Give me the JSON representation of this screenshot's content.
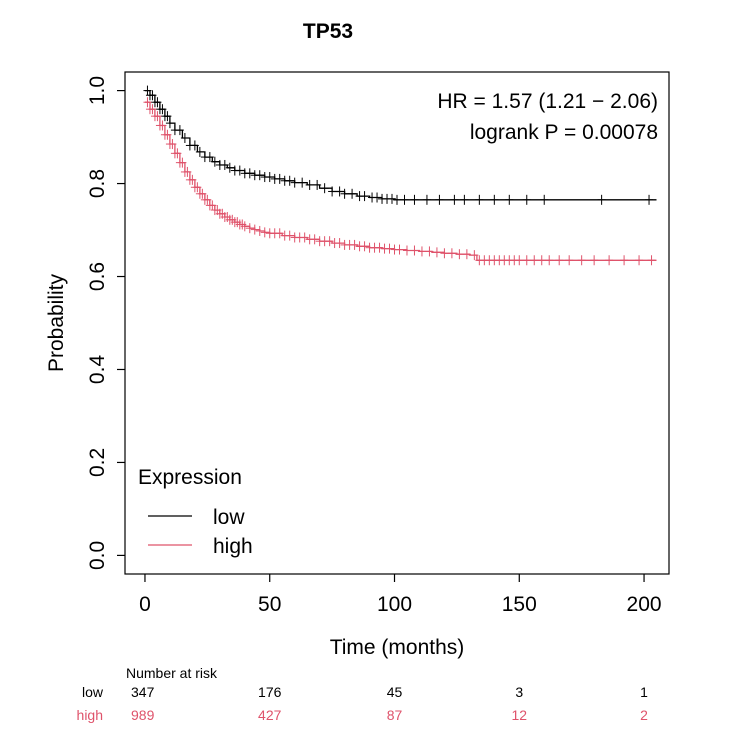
{
  "chart_data": {
    "type": "line",
    "subtype": "kaplan-meier",
    "title": "TP53",
    "xlabel": "Time (months)",
    "ylabel": "Probability",
    "xlim": [
      -8,
      210
    ],
    "ylim": [
      -0.04,
      1.04
    ],
    "xticks": [
      0,
      50,
      100,
      150,
      200
    ],
    "yticks": [
      0.0,
      0.2,
      0.4,
      0.6,
      0.8,
      1.0
    ],
    "xtick_labels": [
      "0",
      "50",
      "100",
      "150",
      "200"
    ],
    "ytick_labels": [
      "0.0",
      "0.2",
      "0.4",
      "0.6",
      "0.8",
      "1.0"
    ],
    "annotations": [
      "HR = 1.57 (1.21 − 2.06)",
      "logrank P = 0.00078"
    ],
    "legend": {
      "title": "Expression",
      "position": "bottom-left",
      "entries": [
        {
          "label": "low",
          "color": "#000000"
        },
        {
          "label": "high",
          "color": "#DF536B"
        }
      ]
    },
    "series": [
      {
        "name": "low",
        "color": "#000000",
        "x": [
          0,
          2,
          4,
          6,
          8,
          10,
          12,
          15,
          18,
          21,
          24,
          27,
          30,
          33,
          36,
          40,
          44,
          48,
          52,
          56,
          60,
          65,
          70,
          75,
          80,
          85,
          90,
          95,
          100,
          205
        ],
        "y": [
          1.0,
          0.99,
          0.975,
          0.96,
          0.945,
          0.93,
          0.915,
          0.898,
          0.882,
          0.868,
          0.857,
          0.847,
          0.84,
          0.834,
          0.828,
          0.822,
          0.818,
          0.814,
          0.81,
          0.806,
          0.802,
          0.797,
          0.79,
          0.783,
          0.778,
          0.773,
          0.77,
          0.767,
          0.765,
          0.765
        ],
        "censor_x": [
          1,
          2,
          3,
          4,
          5,
          6,
          7,
          8,
          9,
          10,
          12,
          14,
          16,
          18,
          20,
          22,
          24,
          26,
          28,
          30,
          32,
          34,
          36,
          38,
          40,
          42,
          44,
          46,
          48,
          50,
          52,
          54,
          56,
          58,
          60,
          63,
          66,
          69,
          72,
          75,
          78,
          80,
          83,
          86,
          88,
          91,
          93,
          95,
          97,
          99,
          101,
          104,
          108,
          113,
          118,
          124,
          128,
          134,
          140,
          146,
          153,
          160,
          183,
          202
        ]
      },
      {
        "name": "high",
        "color": "#DF536B",
        "x": [
          0,
          2,
          4,
          6,
          8,
          10,
          12,
          14,
          16,
          18,
          20,
          22,
          24,
          26,
          28,
          30,
          32,
          34,
          36,
          38,
          40,
          42,
          44,
          46,
          48,
          50,
          55,
          60,
          65,
          70,
          75,
          80,
          85,
          90,
          95,
          100,
          105,
          110,
          115,
          120,
          125,
          130,
          133,
          205
        ],
        "y": [
          0.975,
          0.96,
          0.945,
          0.925,
          0.905,
          0.885,
          0.865,
          0.845,
          0.825,
          0.808,
          0.792,
          0.778,
          0.765,
          0.753,
          0.743,
          0.735,
          0.728,
          0.722,
          0.717,
          0.712,
          0.708,
          0.704,
          0.701,
          0.698,
          0.695,
          0.693,
          0.688,
          0.684,
          0.68,
          0.676,
          0.672,
          0.668,
          0.665,
          0.662,
          0.66,
          0.658,
          0.656,
          0.654,
          0.652,
          0.65,
          0.648,
          0.646,
          0.635,
          0.635
        ],
        "censor_x": [
          1,
          2,
          3,
          4,
          5,
          6,
          7,
          8,
          9,
          10,
          11,
          12,
          13,
          14,
          15,
          16,
          17,
          18,
          19,
          20,
          21,
          22,
          23,
          24,
          25,
          26,
          27,
          28,
          29,
          30,
          31,
          32,
          33,
          34,
          35,
          36,
          37,
          38,
          39,
          40,
          42,
          44,
          46,
          48,
          50,
          52,
          54,
          56,
          58,
          60,
          62,
          64,
          66,
          68,
          70,
          72,
          74,
          76,
          78,
          80,
          82,
          84,
          86,
          88,
          90,
          92,
          94,
          96,
          98,
          100,
          102,
          105,
          108,
          111,
          114,
          117,
          120,
          123,
          126,
          129,
          132,
          134,
          136,
          138,
          140,
          142,
          144,
          146,
          148,
          150,
          153,
          156,
          159,
          162,
          166,
          170,
          175,
          180,
          186,
          192,
          198,
          203
        ]
      }
    ],
    "risk_table": {
      "title": "Number at risk",
      "times": [
        0,
        50,
        100,
        150,
        200
      ],
      "rows": [
        {
          "label": "low",
          "color": "#000000",
          "counts": [
            "347",
            "176",
            "45",
            "3",
            "1"
          ]
        },
        {
          "label": "high",
          "color": "#DF536B",
          "counts": [
            "989",
            "427",
            "87",
            "12",
            "2"
          ]
        }
      ]
    }
  }
}
